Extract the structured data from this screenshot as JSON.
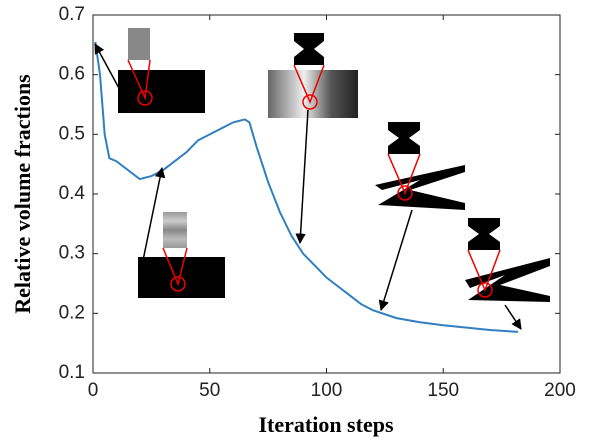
{
  "chart_data": {
    "type": "line",
    "x_label": "Iteration steps",
    "y_label": "Relative volume fractions",
    "xlim": [
      0,
      200
    ],
    "xticks": [
      0,
      50,
      100,
      150,
      200
    ],
    "ylim": [
      0.1,
      0.7
    ],
    "yticks": [
      0.1,
      0.2,
      0.3,
      0.4,
      0.5,
      0.6,
      0.7
    ],
    "grid": false,
    "series": [
      {
        "color": "#2f7fc1",
        "x": [
          1,
          3,
          5,
          7,
          10,
          15,
          20,
          25,
          30,
          35,
          40,
          45,
          50,
          55,
          60,
          65,
          67,
          70,
          75,
          80,
          85,
          90,
          95,
          100,
          105,
          110,
          115,
          120,
          130,
          140,
          150,
          160,
          170,
          182
        ],
        "values": [
          0.655,
          0.6,
          0.5,
          0.46,
          0.455,
          0.44,
          0.425,
          0.43,
          0.44,
          0.455,
          0.47,
          0.49,
          0.5,
          0.51,
          0.52,
          0.525,
          0.52,
          0.48,
          0.42,
          0.37,
          0.33,
          0.3,
          0.28,
          0.26,
          0.245,
          0.23,
          0.215,
          0.205,
          0.192,
          0.185,
          0.18,
          0.176,
          0.172,
          0.169
        ]
      }
    ]
  }
}
